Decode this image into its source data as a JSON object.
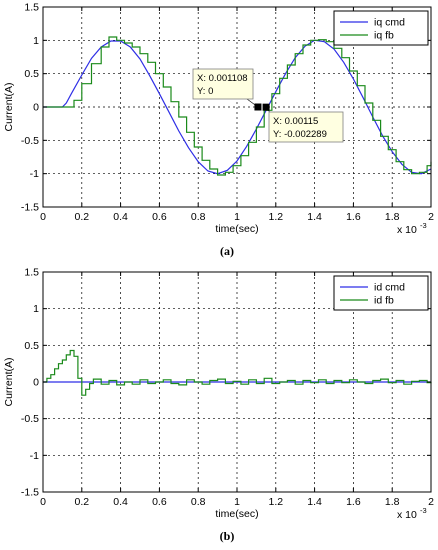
{
  "chart_data": [
    {
      "panel": "a",
      "caption": "(a)",
      "type": "line",
      "xlabel": "time(sec)",
      "ylabel": "Current(A)",
      "x_exponent_label": "x 10",
      "x_exponent": "-3",
      "xlim": [
        0,
        2
      ],
      "ylim": [
        -1.5,
        1.5
      ],
      "xticks": [
        "0",
        "0.2",
        "0.4",
        "0.6",
        "0.8",
        "1",
        "1.2",
        "1.4",
        "1.6",
        "1.8",
        "2"
      ],
      "yticks": [
        "1.5",
        "1",
        "0.5",
        "0",
        "-0.5",
        "-1",
        "-1.5"
      ],
      "grid": true,
      "legend_position": "top-right",
      "series": [
        {
          "name": "iq cmd",
          "color": "#2f2fe6",
          "x": [
            0,
            0.1,
            0.12,
            0.15,
            0.2,
            0.25,
            0.3,
            0.35,
            0.4,
            0.45,
            0.5,
            0.55,
            0.6,
            0.65,
            0.7,
            0.75,
            0.8,
            0.85,
            0.9,
            0.95,
            1.0,
            1.05,
            1.1,
            1.15,
            1.2,
            1.25,
            1.3,
            1.35,
            1.4,
            1.45,
            1.5,
            1.55,
            1.6,
            1.65,
            1.7,
            1.75,
            1.8,
            1.85,
            1.9,
            1.95,
            2.0
          ],
          "y": [
            0,
            0,
            0.06,
            0.22,
            0.48,
            0.73,
            0.9,
            0.99,
            0.99,
            0.9,
            0.72,
            0.47,
            0.2,
            -0.08,
            -0.36,
            -0.61,
            -0.82,
            -0.96,
            -1.0,
            -0.95,
            -0.81,
            -0.59,
            -0.33,
            -0.05,
            0.23,
            0.5,
            0.74,
            0.91,
            1.0,
            0.98,
            0.87,
            0.67,
            0.42,
            0.14,
            -0.15,
            -0.43,
            -0.67,
            -0.86,
            -0.98,
            -1.0,
            -0.93
          ]
        },
        {
          "name": "iq fb",
          "color": "#1a8a1a",
          "x": [
            0,
            0.14,
            0.16,
            0.2,
            0.25,
            0.3,
            0.34,
            0.38,
            0.42,
            0.46,
            0.5,
            0.54,
            0.58,
            0.62,
            0.66,
            0.7,
            0.74,
            0.78,
            0.82,
            0.86,
            0.9,
            0.94,
            0.98,
            1.02,
            1.06,
            1.1,
            1.14,
            1.18,
            1.22,
            1.26,
            1.3,
            1.34,
            1.38,
            1.42,
            1.46,
            1.5,
            1.54,
            1.58,
            1.62,
            1.66,
            1.7,
            1.74,
            1.78,
            1.82,
            1.86,
            1.9,
            1.94,
            1.98,
            2.0
          ],
          "y": [
            0,
            0,
            0.1,
            0.35,
            0.65,
            0.9,
            1.05,
            1.0,
            0.96,
            0.9,
            0.8,
            0.67,
            0.5,
            0.3,
            0.08,
            -0.15,
            -0.38,
            -0.6,
            -0.8,
            -0.93,
            -1.02,
            -0.98,
            -0.88,
            -0.73,
            -0.53,
            -0.3,
            -0.05,
            0.2,
            0.43,
            0.63,
            0.8,
            0.93,
            1.0,
            1.01,
            0.98,
            0.88,
            0.74,
            0.54,
            0.32,
            0.06,
            -0.2,
            -0.44,
            -0.64,
            -0.82,
            -0.94,
            -1.0,
            -0.98,
            -0.88,
            -0.82
          ]
        }
      ],
      "datatips": [
        {
          "x_label": "X: 0.001108",
          "y_label": "Y: 0",
          "x": 1.108,
          "y": 0
        },
        {
          "x_label": "X: 0.00115",
          "y_label": "Y: -0.002289",
          "x": 1.15,
          "y": -0.002289
        }
      ]
    },
    {
      "panel": "b",
      "caption": "(b)",
      "type": "line",
      "xlabel": "time(sec)",
      "ylabel": "Current(A)",
      "x_exponent_label": "x 10",
      "x_exponent": "-3",
      "xlim": [
        0,
        2
      ],
      "ylim": [
        -1.5,
        1.5
      ],
      "xticks": [
        "0",
        "0.2",
        "0.4",
        "0.6",
        "0.8",
        "1",
        "1.2",
        "1.4",
        "1.6",
        "1.8",
        "2"
      ],
      "yticks": [
        "1.5",
        "1",
        "0.5",
        "0",
        "-0.5",
        "-1",
        "-1.5"
      ],
      "grid": true,
      "legend_position": "top-right",
      "series": [
        {
          "name": "id cmd",
          "color": "#2f2fe6",
          "x": [
            0,
            2.0
          ],
          "y": [
            0,
            0
          ]
        },
        {
          "name": "id fb",
          "color": "#1a8a1a",
          "x": [
            0,
            0.02,
            0.04,
            0.06,
            0.08,
            0.1,
            0.12,
            0.14,
            0.16,
            0.18,
            0.2,
            0.22,
            0.24,
            0.26,
            0.3,
            0.34,
            0.38,
            0.42,
            0.46,
            0.5,
            0.54,
            0.58,
            0.62,
            0.66,
            0.7,
            0.74,
            0.78,
            0.82,
            0.86,
            0.9,
            0.94,
            0.98,
            1.02,
            1.06,
            1.1,
            1.14,
            1.18,
            1.22,
            1.26,
            1.3,
            1.34,
            1.38,
            1.42,
            1.46,
            1.5,
            1.54,
            1.58,
            1.62,
            1.66,
            1.7,
            1.74,
            1.78,
            1.82,
            1.86,
            1.9,
            1.94,
            1.98,
            2.0
          ],
          "y": [
            0,
            0.05,
            0.1,
            0.18,
            0.25,
            0.3,
            0.37,
            0.43,
            0.35,
            0.05,
            -0.18,
            -0.1,
            -0.02,
            0.04,
            -0.03,
            0.02,
            -0.04,
            0.0,
            -0.03,
            0.03,
            -0.02,
            0.0,
            0.03,
            -0.02,
            -0.04,
            0.03,
            0.0,
            -0.03,
            0.02,
            0.04,
            -0.02,
            0.01,
            -0.03,
            0.03,
            -0.02,
            0.05,
            -0.02,
            0.0,
            0.02,
            -0.03,
            0.02,
            -0.01,
            0.03,
            -0.02,
            0.02,
            -0.01,
            0.03,
            0.0,
            -0.02,
            0.02,
            0.04,
            -0.01,
            0.02,
            -0.03,
            0.01,
            0.02,
            -0.01,
            0.0
          ]
        }
      ]
    }
  ]
}
